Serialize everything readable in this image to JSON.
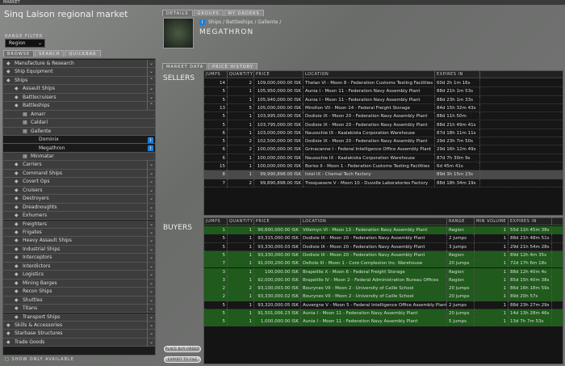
{
  "window": {
    "title": "MARKET",
    "market_title": "Sinq Laison regional market"
  },
  "range_filter": {
    "label": "RANGE FILTER",
    "value": "Region"
  },
  "left_tabs": [
    "BROWSE",
    "SEARCH",
    "QUICKBAR"
  ],
  "tree": [
    {
      "label": "Manufacture & Research",
      "level": 0,
      "state": "collapsed"
    },
    {
      "label": "Ship Equipment",
      "level": 0,
      "state": "collapsed"
    },
    {
      "label": "Ships",
      "level": 0,
      "state": "expanded"
    },
    {
      "label": "Assault Ships",
      "level": 1,
      "state": "collapsed"
    },
    {
      "label": "Battlecruisers",
      "level": 1,
      "state": "collapsed"
    },
    {
      "label": "Battleships",
      "level": 1,
      "state": "expanded"
    },
    {
      "label": "Amarr",
      "level": 2,
      "state": "none"
    },
    {
      "label": "Caldari",
      "level": 2,
      "state": "none"
    },
    {
      "label": "Gallente",
      "level": 2,
      "state": "none"
    },
    {
      "label": "Dominix",
      "level": 3,
      "state": "item"
    },
    {
      "label": "Megathron",
      "level": 3,
      "state": "item"
    },
    {
      "label": "Minmatar",
      "level": 2,
      "state": "none"
    },
    {
      "label": "Carriers",
      "level": 1,
      "state": "collapsed"
    },
    {
      "label": "Command Ships",
      "level": 1,
      "state": "collapsed"
    },
    {
      "label": "Covert Ops",
      "level": 1,
      "state": "collapsed"
    },
    {
      "label": "Cruisers",
      "level": 1,
      "state": "collapsed"
    },
    {
      "label": "Destroyers",
      "level": 1,
      "state": "collapsed"
    },
    {
      "label": "Dreadnoughts",
      "level": 1,
      "state": "collapsed"
    },
    {
      "label": "Exhumers",
      "level": 1,
      "state": "collapsed"
    },
    {
      "label": "Freighters",
      "level": 1,
      "state": "collapsed"
    },
    {
      "label": "Frigates",
      "level": 1,
      "state": "collapsed"
    },
    {
      "label": "Heavy Assault Ships",
      "level": 1,
      "state": "collapsed"
    },
    {
      "label": "Industrial Ships",
      "level": 1,
      "state": "collapsed"
    },
    {
      "label": "Interceptors",
      "level": 1,
      "state": "collapsed"
    },
    {
      "label": "Interdictors",
      "level": 1,
      "state": "collapsed"
    },
    {
      "label": "Logistics",
      "level": 1,
      "state": "collapsed"
    },
    {
      "label": "Mining Barges",
      "level": 1,
      "state": "collapsed"
    },
    {
      "label": "Recon Ships",
      "level": 1,
      "state": "collapsed"
    },
    {
      "label": "Shuttles",
      "level": 1,
      "state": "collapsed"
    },
    {
      "label": "Titans",
      "level": 1,
      "state": "collapsed"
    },
    {
      "label": "Transport Ships",
      "level": 1,
      "state": "collapsed"
    },
    {
      "label": "Skills & Accessories",
      "level": 0,
      "state": "collapsed"
    },
    {
      "label": "Starbase Structures",
      "level": 0,
      "state": "collapsed"
    },
    {
      "label": "Trade Goods",
      "level": 0,
      "state": "collapsed"
    }
  ],
  "show_only_available": "SHOW ONLY AVAILABLE",
  "right_tabs": [
    "DETAILS",
    "GROUPS",
    "MY ORDERS"
  ],
  "breadcrumb": "Ships / Battleships / Gallente /",
  "item_name": "MEGATHRON",
  "data_tabs": [
    "MARKET DATA",
    "PRICE HISTORY"
  ],
  "sellers": {
    "label": "SELLERS",
    "columns": [
      "JUMPS",
      "QUANTITY",
      "PRICE",
      "LOCATION",
      "EXPIRES IN"
    ],
    "rows": [
      [
        "14",
        "2",
        "109,000,000.00 ISK",
        "Thelan VI - Moon 8 - Federation Customs Testing Facilities",
        "60d 2h 1m 16s"
      ],
      [
        "5",
        "1",
        "105,950,000.00 ISK",
        "Aunia I - Moon 11 - Federation Navy Assembly Plant",
        "88d 21h 1m 53s"
      ],
      [
        "5",
        "1",
        "105,940,000.00 ISK",
        "Aunia I - Moon 11 - Federation Navy Assembly Plant",
        "88d 23h 1m 33s"
      ],
      [
        "13",
        "5",
        "105,000,000.00 ISK",
        "Mirolton VII - Moon 14 - Federal Freight Storage",
        "84d 15h 32m 43s"
      ],
      [
        "5",
        "1",
        "103,995,000.00 ISK",
        "Dodixie IX - Moon 20 - Federation Navy Assembly Plant",
        "88d 11h 50m"
      ],
      [
        "5",
        "1",
        "103,795,000.00 ISK",
        "Dodixie IX - Moon 20 - Federation Navy Assembly Plant",
        "88d 21h 49m 41s"
      ],
      [
        "6",
        "1",
        "103,000,000.00 ISK",
        "Nausschie IX - Kaalakiota Corporation Warehouse",
        "87d 18h 11m 11s"
      ],
      [
        "5",
        "2",
        "102,500,000.00 ISK",
        "Dodixie IX - Moon 20 - Federation Navy Assembly Plant",
        "29d 23h 7m 50s"
      ],
      [
        "6",
        "2",
        "100,000,000.00 ISK",
        "Grinacanne I - Federal Intelligence Office Assembly Plant",
        "29d 16h 12m 49s"
      ],
      [
        "6",
        "1",
        "100,000,000.00 ISK",
        "Nausschie IX - Kaalakiota Corporation Warehouse",
        "87d 7h 30m 9s"
      ],
      [
        "15",
        "1",
        "100,000,000.00 ISK",
        "Boriss II - Moon 1 - Federation Customs Testing Facilities",
        "6d 45m 41s"
      ],
      [
        "8",
        "1",
        "99,990,898.00 ISK",
        "Intel IX - Chemal Tech Factory",
        "89d 3h 15m 23s"
      ],
      [
        "7",
        "2",
        "99,890,898.00 ISK",
        "Trosquesere V - Moon 10 - Duvolle Laboratories Factory",
        "88d 18h 34m 19s"
      ]
    ]
  },
  "buyers": {
    "label": "BUYERS",
    "columns": [
      "JUMPS",
      "QUANTITY",
      "PRICE",
      "LOCATION",
      "RANGE",
      "MIN VOLUME",
      "EXPIRES IN"
    ],
    "rows": [
      [
        "1",
        "1",
        "90,600,000.00 ISK",
        "Villemyn VI - Moon 13 - Federation Navy Assembly Plant",
        "Region",
        "1",
        "55d 11h 45m 38s"
      ],
      [
        "5",
        "1",
        "93,315,000.00 ISK",
        "Dodixie IX - Moon 20 - Federation Navy Assembly Plant",
        "2 jumps",
        "1",
        "88d 21h 48m 51s"
      ],
      [
        "5",
        "1",
        "93,330,000.03 ISK",
        "Dodixie IX - Moon 20 - Federation Navy Assembly Plant",
        "3 jumps",
        "1",
        "29d 21h 54m 28s"
      ],
      [
        "5",
        "1",
        "93,330,000.00 ISK",
        "Dodixie IX - Moon 20 - Federation Navy Assembly Plant",
        "Region",
        "1",
        "89d 12h 4m 35s"
      ],
      [
        "7",
        "1",
        "91,000,200.00 ISK",
        "Deltole III - Moon 1 - Core Complexion Inc. Warehouse",
        "20 jumps",
        "1",
        "72d 17h 6m 18s"
      ],
      [
        "3",
        "1",
        "100,000.00 ISK",
        "Brapelille X - Moon 6 - Federal Freight Storage",
        "Region",
        "1",
        "88d 12h 40m 4s"
      ],
      [
        "3",
        "1",
        "92,000,000.00 ISK",
        "Brapelille IV - Moon 2 - Federal Administration Bureau Offices",
        "Region",
        "1",
        "85d 15h 40m 38s"
      ],
      [
        "2",
        "2",
        "93,100,003.00 ISK",
        "Bourynes VII - Moon 2 - University of Caille School",
        "20 jumps",
        "1",
        "86d 16h 18m 59s"
      ],
      [
        "2",
        "1",
        "93,330,000.02 ISK",
        "Bourynes VII - Moon 2 - University of Caille School",
        "20 jumps",
        "1",
        "89d 20h 57s"
      ],
      [
        "5",
        "1",
        "93,320,000.05 ISK",
        "Auvergne V - Moon 5 - Federal Intelligence Office Assembly Plant",
        "2 jumps",
        "1",
        "88d 23h 27m 29s"
      ],
      [
        "5",
        "1",
        "91,501,006.23 ISK",
        "Aunia I - Moon 11 - Federation Navy Assembly Plant",
        "20 jumps",
        "1",
        "14d 13h 28m 46s"
      ],
      [
        "5",
        "1",
        "1,000,000.00 ISK",
        "Aunia I - Moon 11 - Federation Navy Assembly Plant",
        "5 jumps",
        "1",
        "13d 7h 7m 53s"
      ]
    ],
    "row_highlight": [
      "green",
      "dark",
      "dark",
      "green",
      "green",
      "green",
      "green",
      "green",
      "green",
      "dark",
      "green",
      "green"
    ]
  },
  "buttons": {
    "place_buy_order": "PLACE BUY ORDER",
    "export": "EXPORT TO FILE"
  },
  "colors": {
    "buyer_green": "#1f5b1b",
    "info_blue": "#1e7fd6"
  }
}
